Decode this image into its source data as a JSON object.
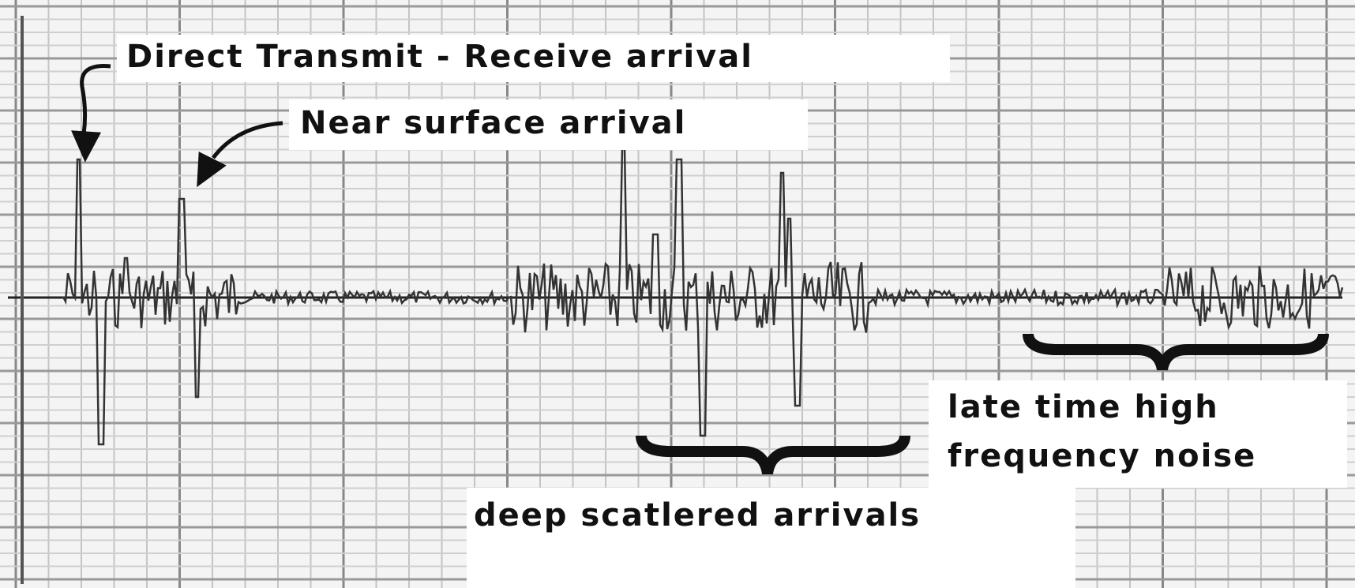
{
  "annotations": {
    "direct": "Direct Transmit - Receive arrival",
    "near_surface": "Near surface arrival",
    "late_noise": [
      "late time high",
      "frequency noise"
    ],
    "deep": "deep scatlered arrivals"
  }
}
